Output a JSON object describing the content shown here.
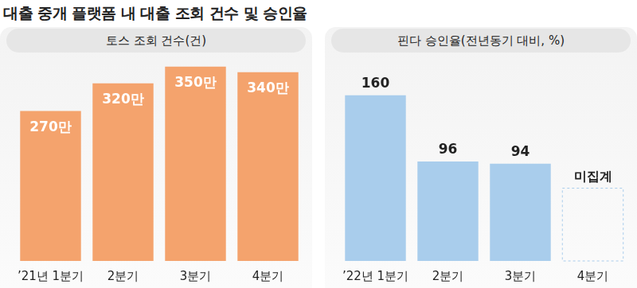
{
  "title": "대출 중개 플랫폼 내 대출 조회 건수 및 승인율",
  "chart_data": [
    {
      "type": "bar",
      "title": "토스 조회 건수(건)",
      "categories": [
        "’21년 1분기",
        "2분기",
        "3분기",
        "4분기"
      ],
      "values": [
        2700000,
        3200000,
        3500000,
        3400000
      ],
      "value_labels": [
        "270만",
        "320만",
        "350만",
        "340만"
      ],
      "color": "#f4a36d",
      "data_labels": true,
      "tick_labels": "x",
      "grid": false
    },
    {
      "type": "bar",
      "title": "핀다 승인율(전년동기 대비, %)",
      "categories": [
        "’22년 1분기",
        "2분기",
        "3분기",
        "4분기"
      ],
      "values": [
        160,
        96,
        94,
        null
      ],
      "color": "#a9cdec",
      "data_labels": true,
      "tick_labels": "x",
      "grid": false,
      "annotations": [
        {
          "category": "4분기",
          "text": "미집계"
        }
      ]
    }
  ]
}
